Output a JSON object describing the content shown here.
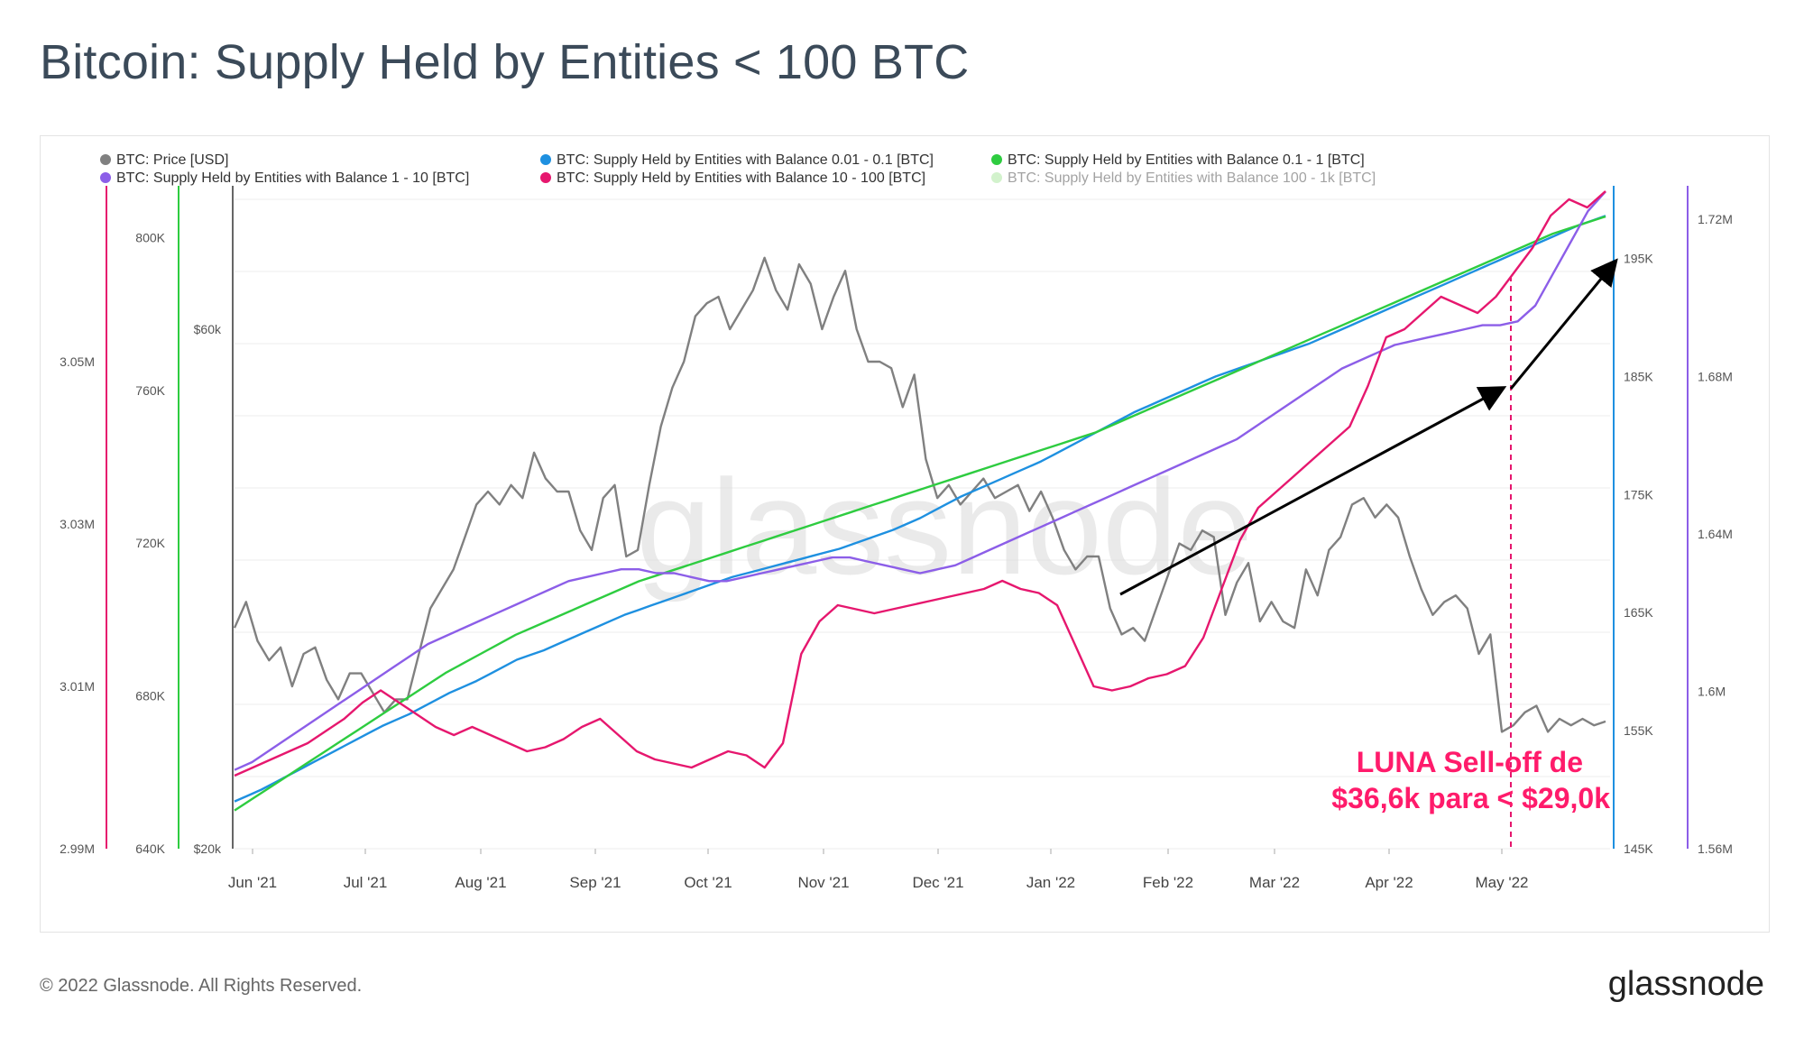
{
  "title": "Bitcoin: Supply Held by Entities < 100 BTC",
  "footer": {
    "copyright": "© 2022 Glassnode. All Rights Reserved.",
    "logo": "glassnode"
  },
  "watermark": "glassnode",
  "annotation": {
    "line1": "LUNA Sell-off de",
    "line2": "$36,6k para < $29,0k"
  },
  "chart_data": {
    "type": "line",
    "x_labels": [
      "Jun '21",
      "Jul '21",
      "Aug '21",
      "Sep '21",
      "Oct '21",
      "Nov '21",
      "Dec '21",
      "Jan '22",
      "Feb '22",
      "Mar '22",
      "Apr '22",
      "May '22"
    ],
    "x_range": [
      "2021-05-28",
      "2022-05-29"
    ],
    "axes": {
      "price": {
        "ticks": [
          "$20k",
          "$60k"
        ],
        "range": [
          20000,
          70000
        ],
        "color": "#666666"
      },
      "s01_1": {
        "ticks": [
          "640K",
          "680K",
          "720K",
          "760K",
          "800K"
        ],
        "range": [
          640000,
          810000
        ],
        "color": "#2ecc40"
      },
      "s10_100": {
        "ticks": [
          "2.99M",
          "3.01M",
          "3.03M",
          "3.05M"
        ],
        "range": [
          2.99,
          3.07
        ],
        "color": "#e6176e"
      },
      "s001_01": {
        "ticks": [
          "145K",
          "155K",
          "165K",
          "175K",
          "185K",
          "195K"
        ],
        "range": [
          145000,
          200000
        ],
        "color": "#1e90e0"
      },
      "s1_10": {
        "ticks": [
          "1.56M",
          "1.6M",
          "1.64M",
          "1.68M",
          "1.72M"
        ],
        "range": [
          1.56,
          1.725
        ],
        "color": "#8c5ee8"
      }
    },
    "series": [
      {
        "name": "BTC: Price [USD]",
        "color": "#808080",
        "axis": "price",
        "values": [
          37000,
          39000,
          36000,
          34500,
          35500,
          32500,
          35000,
          35500,
          33000,
          31500,
          33500,
          33500,
          32000,
          30500,
          31500,
          31500,
          35000,
          38500,
          40000,
          41500,
          44000,
          46500,
          47500,
          46500,
          48000,
          47000,
          50500,
          48500,
          47500,
          47500,
          44500,
          43000,
          47000,
          48000,
          42500,
          43000,
          48000,
          52500,
          55500,
          57500,
          61000,
          62000,
          62500,
          60000,
          61500,
          63000,
          65500,
          63000,
          61500,
          65000,
          63500,
          60000,
          62500,
          64500,
          60000,
          57500,
          57500,
          57000,
          54000,
          56500,
          50000,
          47000,
          48000,
          46500,
          47500,
          48500,
          47000,
          47500,
          48000,
          46000,
          47500,
          45500,
          43000,
          41500,
          42500,
          42500,
          38500,
          36500,
          37000,
          36000,
          38500,
          41000,
          43500,
          43000,
          44500,
          44000,
          38000,
          40500,
          42000,
          37500,
          39000,
          37500,
          37000,
          41500,
          39500,
          43000,
          44000,
          46500,
          47000,
          45500,
          46500,
          45500,
          42500,
          40000,
          38000,
          39000,
          39500,
          38500,
          35000,
          36500,
          29000,
          29500,
          30500,
          31000,
          29000,
          30000,
          29500,
          30000,
          29500,
          29800
        ]
      },
      {
        "name": "BTC: Supply Held by Entities with Balance 0.01 - 0.1 [BTC]",
        "color": "#1e90e0",
        "axis": "s001_01",
        "values": [
          149000,
          149500,
          150000,
          150600,
          151200,
          151800,
          152400,
          153000,
          153600,
          154200,
          154800,
          155400,
          155900,
          156400,
          157000,
          157600,
          158200,
          158700,
          159200,
          159800,
          160400,
          161000,
          161400,
          161800,
          162300,
          162800,
          163300,
          163800,
          164300,
          164800,
          165200,
          165600,
          166000,
          166400,
          166800,
          167200,
          167600,
          168000,
          168300,
          168600,
          168900,
          169200,
          169500,
          169800,
          170100,
          170400,
          170800,
          171200,
          171600,
          172000,
          172500,
          173000,
          173600,
          174200,
          174800,
          175300,
          175800,
          176300,
          176800,
          177300,
          177800,
          178400,
          179000,
          179600,
          180200,
          180800,
          181400,
          182000,
          182500,
          183000,
          183500,
          184000,
          184500,
          185000,
          185400,
          185800,
          186200,
          186600,
          187000,
          187400,
          187800,
          188300,
          188800,
          189300,
          189800,
          190300,
          190800,
          191300,
          191800,
          192300,
          192800,
          193300,
          193800,
          194300,
          194800,
          195300,
          195800,
          196300,
          196800,
          197300,
          197800,
          198200,
          198600
        ]
      },
      {
        "name": "BTC: Supply Held by Entities with Balance 0.1 - 1 [BTC]",
        "color": "#2ecc40",
        "axis": "s01_1",
        "values": [
          650000,
          653000,
          656000,
          659000,
          662000,
          665000,
          668000,
          671000,
          674000,
          677000,
          680000,
          683000,
          686000,
          688500,
          691000,
          693500,
          696000,
          698000,
          700000,
          702000,
          704000,
          706000,
          708000,
          710000,
          711500,
          713000,
          714500,
          716000,
          717500,
          719000,
          720500,
          722000,
          723500,
          725000,
          726500,
          728000,
          729500,
          731000,
          732500,
          734000,
          735500,
          737000,
          738500,
          740000,
          741500,
          743000,
          744500,
          746000,
          747500,
          749000,
          751000,
          753000,
          755000,
          757000,
          759000,
          761000,
          763000,
          765000,
          767000,
          769000,
          771000,
          773000,
          775000,
          777000,
          779000,
          781000,
          783000,
          785000,
          787000,
          789000,
          791000,
          793000,
          795000,
          797000,
          799000,
          801000,
          802500,
          804000,
          805500
        ]
      },
      {
        "name": "BTC: Supply Held by Entities with Balance 1 - 10 [BTC]",
        "color": "#8c5ee8",
        "axis": "s1_10",
        "values": [
          1.58,
          1.582,
          1.585,
          1.588,
          1.591,
          1.594,
          1.597,
          1.6,
          1.603,
          1.606,
          1.609,
          1.612,
          1.614,
          1.616,
          1.618,
          1.62,
          1.622,
          1.624,
          1.626,
          1.628,
          1.629,
          1.63,
          1.631,
          1.631,
          1.63,
          1.63,
          1.629,
          1.628,
          1.628,
          1.629,
          1.63,
          1.631,
          1.632,
          1.633,
          1.634,
          1.634,
          1.633,
          1.632,
          1.631,
          1.63,
          1.631,
          1.632,
          1.634,
          1.636,
          1.638,
          1.64,
          1.642,
          1.644,
          1.646,
          1.648,
          1.65,
          1.652,
          1.654,
          1.656,
          1.658,
          1.66,
          1.662,
          1.664,
          1.667,
          1.67,
          1.673,
          1.676,
          1.679,
          1.682,
          1.684,
          1.686,
          1.688,
          1.689,
          1.69,
          1.691,
          1.692,
          1.693,
          1.693,
          1.694,
          1.698,
          1.706,
          1.714,
          1.722,
          1.727
        ]
      },
      {
        "name": "BTC: Supply Held by Entities with Balance 10 - 100 [BTC]",
        "color": "#e6176e",
        "axis": "s10_100",
        "values": [
          2.999,
          3.0,
          3.001,
          3.002,
          3.003,
          3.0045,
          3.006,
          3.008,
          3.0095,
          3.008,
          3.0065,
          3.005,
          3.004,
          3.005,
          3.004,
          3.003,
          3.002,
          3.0025,
          3.0035,
          3.005,
          3.006,
          3.004,
          3.002,
          3.001,
          3.0005,
          3.0,
          3.001,
          3.002,
          3.0015,
          3.0,
          3.003,
          3.014,
          3.018,
          3.02,
          3.0195,
          3.019,
          3.0195,
          3.02,
          3.0205,
          3.021,
          3.0215,
          3.022,
          3.023,
          3.022,
          3.0215,
          3.02,
          3.015,
          3.01,
          3.0095,
          3.01,
          3.011,
          3.0115,
          3.0125,
          3.016,
          3.022,
          3.028,
          3.032,
          3.034,
          3.036,
          3.038,
          3.04,
          3.042,
          3.047,
          3.053,
          3.054,
          3.056,
          3.058,
          3.057,
          3.056,
          3.058,
          3.061,
          3.064,
          3.068,
          3.07,
          3.069,
          3.071
        ]
      }
    ],
    "hidden_series": [
      {
        "name": "BTC: Supply Held by Entities with Balance 100 - 1k [BTC]",
        "color": "#9de38f"
      }
    ]
  }
}
